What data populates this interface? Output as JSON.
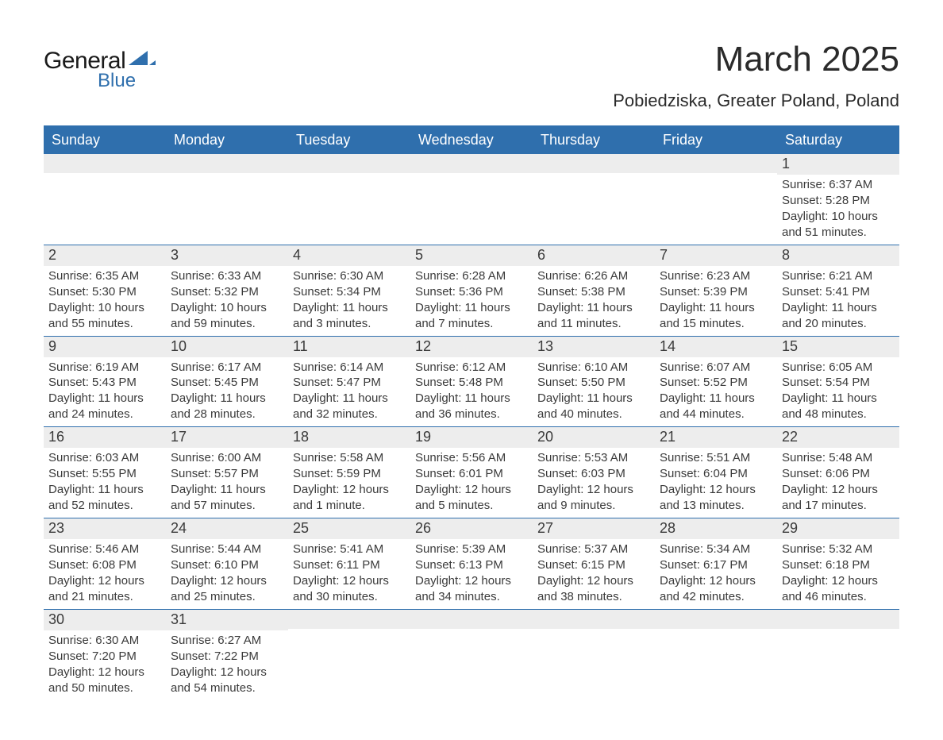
{
  "logo": {
    "text_general": "General",
    "text_blue": "Blue",
    "swoosh_color": "#2f6fad"
  },
  "header": {
    "month_title": "March 2025",
    "location": "Pobiedziska, Greater Poland, Poland"
  },
  "colors": {
    "header_bg": "#2f6fad",
    "header_text": "#ffffff",
    "daynum_bg": "#ededed",
    "row_border": "#2f6fad",
    "body_text": "#3a3a3a",
    "page_bg": "#ffffff"
  },
  "typography": {
    "month_title_fontsize": 44,
    "location_fontsize": 22,
    "dayhead_fontsize": 18,
    "daynum_fontsize": 18,
    "cell_fontsize": 15
  },
  "day_headers": [
    "Sunday",
    "Monday",
    "Tuesday",
    "Wednesday",
    "Thursday",
    "Friday",
    "Saturday"
  ],
  "labels": {
    "sunrise": "Sunrise:",
    "sunset": "Sunset:",
    "daylight": "Daylight:"
  },
  "weeks": [
    [
      {
        "blank": true
      },
      {
        "blank": true
      },
      {
        "blank": true
      },
      {
        "blank": true
      },
      {
        "blank": true
      },
      {
        "blank": true
      },
      {
        "day": 1,
        "sunrise": "6:37 AM",
        "sunset": "5:28 PM",
        "daylight": "10 hours and 51 minutes."
      }
    ],
    [
      {
        "day": 2,
        "sunrise": "6:35 AM",
        "sunset": "5:30 PM",
        "daylight": "10 hours and 55 minutes."
      },
      {
        "day": 3,
        "sunrise": "6:33 AM",
        "sunset": "5:32 PM",
        "daylight": "10 hours and 59 minutes."
      },
      {
        "day": 4,
        "sunrise": "6:30 AM",
        "sunset": "5:34 PM",
        "daylight": "11 hours and 3 minutes."
      },
      {
        "day": 5,
        "sunrise": "6:28 AM",
        "sunset": "5:36 PM",
        "daylight": "11 hours and 7 minutes."
      },
      {
        "day": 6,
        "sunrise": "6:26 AM",
        "sunset": "5:38 PM",
        "daylight": "11 hours and 11 minutes."
      },
      {
        "day": 7,
        "sunrise": "6:23 AM",
        "sunset": "5:39 PM",
        "daylight": "11 hours and 15 minutes."
      },
      {
        "day": 8,
        "sunrise": "6:21 AM",
        "sunset": "5:41 PM",
        "daylight": "11 hours and 20 minutes."
      }
    ],
    [
      {
        "day": 9,
        "sunrise": "6:19 AM",
        "sunset": "5:43 PM",
        "daylight": "11 hours and 24 minutes."
      },
      {
        "day": 10,
        "sunrise": "6:17 AM",
        "sunset": "5:45 PM",
        "daylight": "11 hours and 28 minutes."
      },
      {
        "day": 11,
        "sunrise": "6:14 AM",
        "sunset": "5:47 PM",
        "daylight": "11 hours and 32 minutes."
      },
      {
        "day": 12,
        "sunrise": "6:12 AM",
        "sunset": "5:48 PM",
        "daylight": "11 hours and 36 minutes."
      },
      {
        "day": 13,
        "sunrise": "6:10 AM",
        "sunset": "5:50 PM",
        "daylight": "11 hours and 40 minutes."
      },
      {
        "day": 14,
        "sunrise": "6:07 AM",
        "sunset": "5:52 PM",
        "daylight": "11 hours and 44 minutes."
      },
      {
        "day": 15,
        "sunrise": "6:05 AM",
        "sunset": "5:54 PM",
        "daylight": "11 hours and 48 minutes."
      }
    ],
    [
      {
        "day": 16,
        "sunrise": "6:03 AM",
        "sunset": "5:55 PM",
        "daylight": "11 hours and 52 minutes."
      },
      {
        "day": 17,
        "sunrise": "6:00 AM",
        "sunset": "5:57 PM",
        "daylight": "11 hours and 57 minutes."
      },
      {
        "day": 18,
        "sunrise": "5:58 AM",
        "sunset": "5:59 PM",
        "daylight": "12 hours and 1 minute."
      },
      {
        "day": 19,
        "sunrise": "5:56 AM",
        "sunset": "6:01 PM",
        "daylight": "12 hours and 5 minutes."
      },
      {
        "day": 20,
        "sunrise": "5:53 AM",
        "sunset": "6:03 PM",
        "daylight": "12 hours and 9 minutes."
      },
      {
        "day": 21,
        "sunrise": "5:51 AM",
        "sunset": "6:04 PM",
        "daylight": "12 hours and 13 minutes."
      },
      {
        "day": 22,
        "sunrise": "5:48 AM",
        "sunset": "6:06 PM",
        "daylight": "12 hours and 17 minutes."
      }
    ],
    [
      {
        "day": 23,
        "sunrise": "5:46 AM",
        "sunset": "6:08 PM",
        "daylight": "12 hours and 21 minutes."
      },
      {
        "day": 24,
        "sunrise": "5:44 AM",
        "sunset": "6:10 PM",
        "daylight": "12 hours and 25 minutes."
      },
      {
        "day": 25,
        "sunrise": "5:41 AM",
        "sunset": "6:11 PM",
        "daylight": "12 hours and 30 minutes."
      },
      {
        "day": 26,
        "sunrise": "5:39 AM",
        "sunset": "6:13 PM",
        "daylight": "12 hours and 34 minutes."
      },
      {
        "day": 27,
        "sunrise": "5:37 AM",
        "sunset": "6:15 PM",
        "daylight": "12 hours and 38 minutes."
      },
      {
        "day": 28,
        "sunrise": "5:34 AM",
        "sunset": "6:17 PM",
        "daylight": "12 hours and 42 minutes."
      },
      {
        "day": 29,
        "sunrise": "5:32 AM",
        "sunset": "6:18 PM",
        "daylight": "12 hours and 46 minutes."
      }
    ],
    [
      {
        "day": 30,
        "sunrise": "6:30 AM",
        "sunset": "7:20 PM",
        "daylight": "12 hours and 50 minutes."
      },
      {
        "day": 31,
        "sunrise": "6:27 AM",
        "sunset": "7:22 PM",
        "daylight": "12 hours and 54 minutes."
      },
      {
        "blank": true
      },
      {
        "blank": true
      },
      {
        "blank": true
      },
      {
        "blank": true
      },
      {
        "blank": true
      }
    ]
  ]
}
